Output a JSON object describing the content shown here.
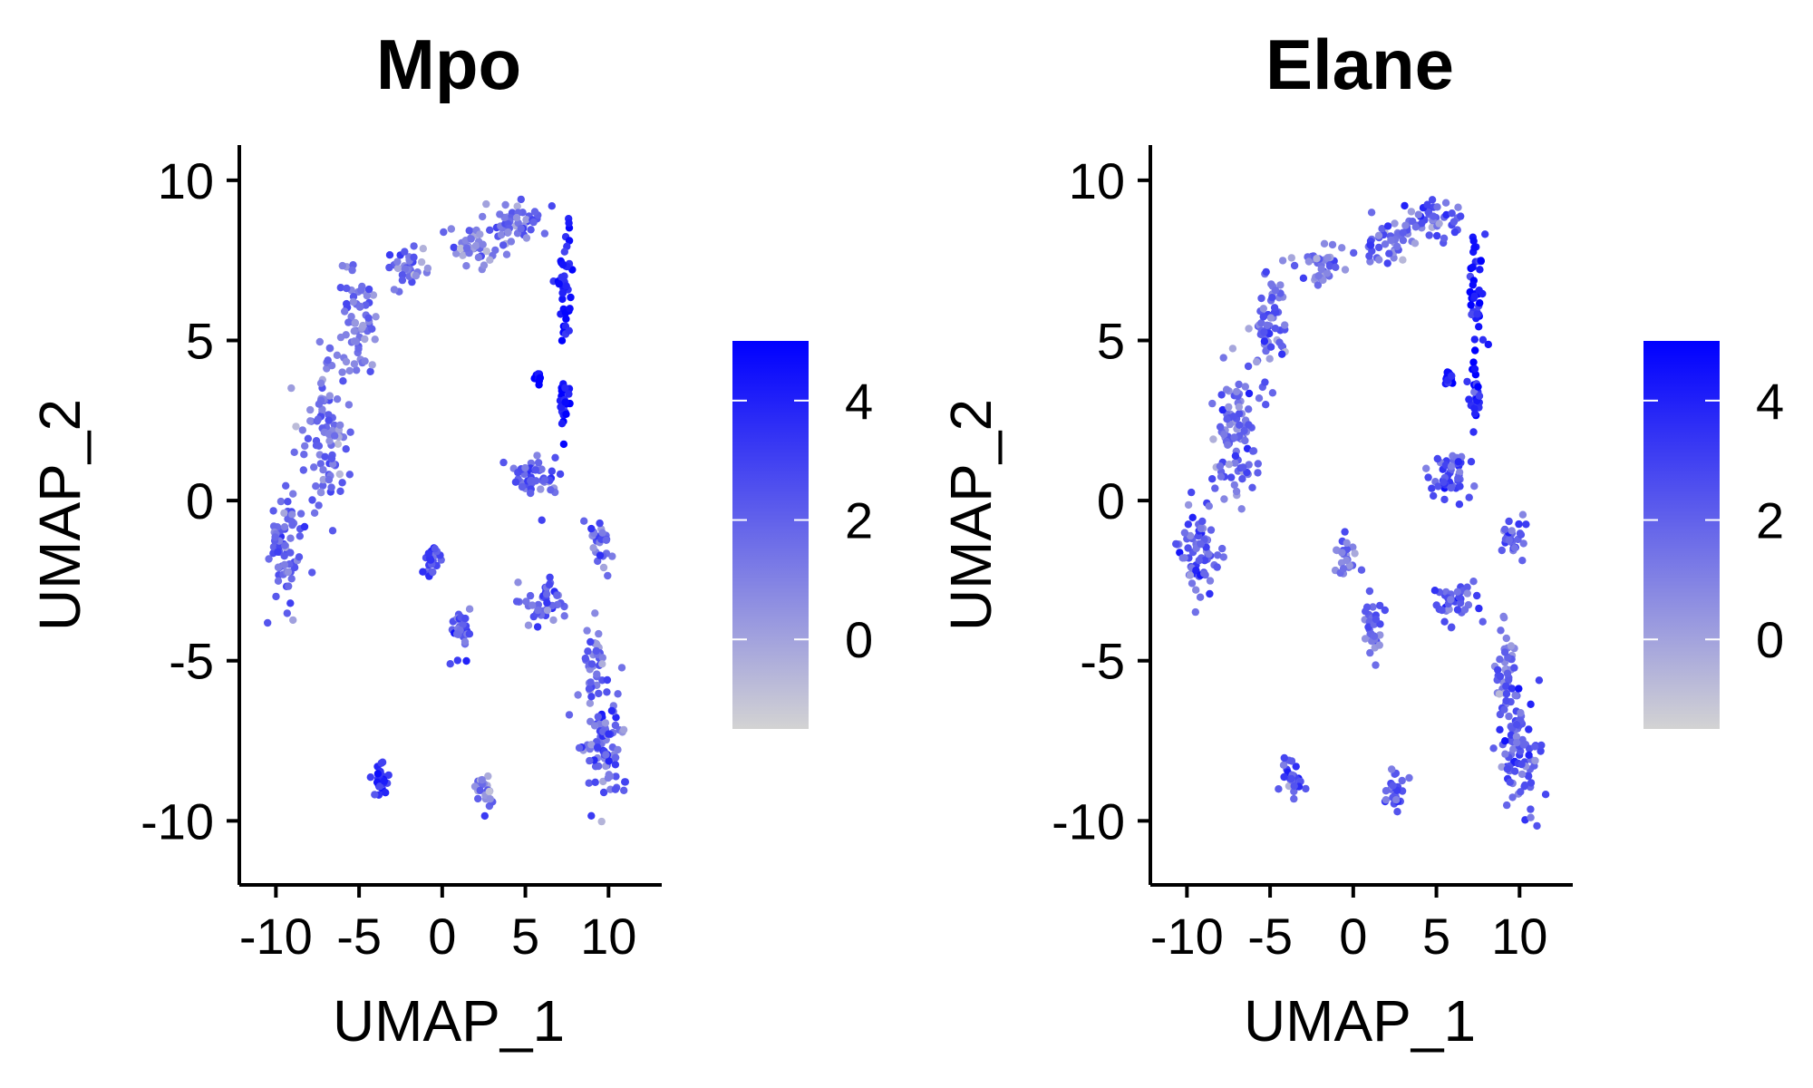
{
  "chart_data": [
    {
      "type": "scatter",
      "title": "Mpo",
      "xlabel": "UMAP_1",
      "ylabel": "UMAP_2",
      "xlim": [
        -12.2,
        13.2
      ],
      "ylim": [
        -12,
        11.1
      ],
      "x_ticks": [
        -10,
        -5,
        0,
        5,
        10
      ],
      "y_ticks": [
        -10,
        -5,
        0,
        5,
        10
      ],
      "x_tick_labels": [
        "-10",
        "-5",
        "0",
        "5",
        "10"
      ],
      "y_tick_labels": [
        "-10",
        "-5",
        "0",
        "5",
        "10"
      ],
      "grid": false,
      "colorbar": {
        "min": -1.5,
        "max": 5,
        "ticks": [
          0,
          2,
          4
        ],
        "tick_labels": [
          "0",
          "2",
          "4"
        ],
        "low_color": "#d3d3d3",
        "high_color": "#0000ff"
      },
      "clusters": [
        {
          "x": -9.3,
          "y": -1.5,
          "spread": [
            1.0,
            1.4
          ],
          "value": 1.9
        },
        {
          "x": -7.0,
          "y": 2.0,
          "spread": [
            1.1,
            1.8
          ],
          "value": 1.5
        },
        {
          "x": -5.0,
          "y": 5.5,
          "spread": [
            0.9,
            1.4
          ],
          "value": 1.4
        },
        {
          "x": -2.0,
          "y": 7.3,
          "spread": [
            1.1,
            0.5
          ],
          "value": 1.3
        },
        {
          "x": 2.0,
          "y": 8.0,
          "spread": [
            1.4,
            0.5
          ],
          "value": 1.1
        },
        {
          "x": 4.5,
          "y": 8.7,
          "spread": [
            1.6,
            0.5
          ],
          "value": 1.6
        },
        {
          "x": 7.4,
          "y": 6.5,
          "spread": [
            0.4,
            1.8
          ],
          "value": 4.2
        },
        {
          "x": 7.3,
          "y": 3.2,
          "spread": [
            0.3,
            0.8
          ],
          "value": 4.5
        },
        {
          "x": 5.7,
          "y": 3.8,
          "spread": [
            0.2,
            0.15
          ],
          "value": 4.8
        },
        {
          "x": 5.8,
          "y": 0.8,
          "spread": [
            1.2,
            0.7
          ],
          "value": 2.2
        },
        {
          "x": -0.5,
          "y": -1.8,
          "spread": [
            0.5,
            0.5
          ],
          "value": 2.5
        },
        {
          "x": 9.6,
          "y": -1.2,
          "spread": [
            0.6,
            0.6
          ],
          "value": 2.1
        },
        {
          "x": 6.0,
          "y": -3.2,
          "spread": [
            1.4,
            0.5
          ],
          "value": 1.9
        },
        {
          "x": 1.2,
          "y": -4.0,
          "spread": [
            0.5,
            0.8
          ],
          "value": 2.2
        },
        {
          "x": 9.2,
          "y": -5.0,
          "spread": [
            0.5,
            1.0
          ],
          "value": 1.2
        },
        {
          "x": 9.8,
          "y": -7.7,
          "spread": [
            1.2,
            1.6
          ],
          "value": 1.9
        },
        {
          "x": -3.7,
          "y": -8.6,
          "spread": [
            0.5,
            0.6
          ],
          "value": 3.0
        },
        {
          "x": 2.6,
          "y": -9.1,
          "spread": [
            0.5,
            0.6
          ],
          "value": 1.0
        }
      ]
    },
    {
      "type": "scatter",
      "title": "Elane",
      "xlabel": "UMAP_1",
      "ylabel": "UMAP_2",
      "xlim": [
        -12.2,
        13.2
      ],
      "ylim": [
        -12,
        11.1
      ],
      "x_ticks": [
        -10,
        -5,
        0,
        5,
        10
      ],
      "y_ticks": [
        -10,
        -5,
        0,
        5,
        10
      ],
      "x_tick_labels": [
        "-10",
        "-5",
        "0",
        "5",
        "10"
      ],
      "y_tick_labels": [
        "-10",
        "-5",
        "0",
        "5",
        "10"
      ],
      "grid": false,
      "colorbar": {
        "min": -1.5,
        "max": 5,
        "ticks": [
          0,
          2,
          4
        ],
        "tick_labels": [
          "0",
          "2",
          "4"
        ],
        "low_color": "#d3d3d3",
        "high_color": "#0000ff"
      },
      "clusters": [
        {
          "x": -9.3,
          "y": -1.5,
          "spread": [
            1.0,
            1.4
          ],
          "value": 2.1
        },
        {
          "x": -7.0,
          "y": 2.0,
          "spread": [
            1.1,
            1.8
          ],
          "value": 1.6
        },
        {
          "x": -5.0,
          "y": 5.5,
          "spread": [
            0.9,
            1.4
          ],
          "value": 1.5
        },
        {
          "x": -2.0,
          "y": 7.3,
          "spread": [
            1.1,
            0.5
          ],
          "value": 1.4
        },
        {
          "x": 2.0,
          "y": 8.0,
          "spread": [
            1.4,
            0.5
          ],
          "value": 1.5
        },
        {
          "x": 4.5,
          "y": 8.7,
          "spread": [
            1.6,
            0.5
          ],
          "value": 2.2
        },
        {
          "x": 7.4,
          "y": 6.5,
          "spread": [
            0.4,
            1.8
          ],
          "value": 4.5
        },
        {
          "x": 7.3,
          "y": 3.2,
          "spread": [
            0.3,
            0.8
          ],
          "value": 4.2
        },
        {
          "x": 5.7,
          "y": 3.8,
          "spread": [
            0.2,
            0.15
          ],
          "value": 4.6
        },
        {
          "x": 5.8,
          "y": 0.8,
          "spread": [
            1.2,
            0.7
          ],
          "value": 2.6
        },
        {
          "x": -0.5,
          "y": -1.8,
          "spread": [
            0.5,
            0.5
          ],
          "value": 1.6
        },
        {
          "x": 9.6,
          "y": -1.2,
          "spread": [
            0.6,
            0.6
          ],
          "value": 2.0
        },
        {
          "x": 6.0,
          "y": -3.2,
          "spread": [
            1.4,
            0.5
          ],
          "value": 2.1
        },
        {
          "x": 1.2,
          "y": -4.0,
          "spread": [
            0.5,
            0.8
          ],
          "value": 2.0
        },
        {
          "x": 9.2,
          "y": -5.0,
          "spread": [
            0.5,
            1.0
          ],
          "value": 1.2
        },
        {
          "x": 9.8,
          "y": -7.7,
          "spread": [
            1.2,
            1.6
          ],
          "value": 2.4
        },
        {
          "x": -3.7,
          "y": -8.6,
          "spread": [
            0.5,
            0.6
          ],
          "value": 2.4
        },
        {
          "x": 2.6,
          "y": -9.1,
          "spread": [
            0.5,
            0.6
          ],
          "value": 2.0
        }
      ]
    }
  ]
}
